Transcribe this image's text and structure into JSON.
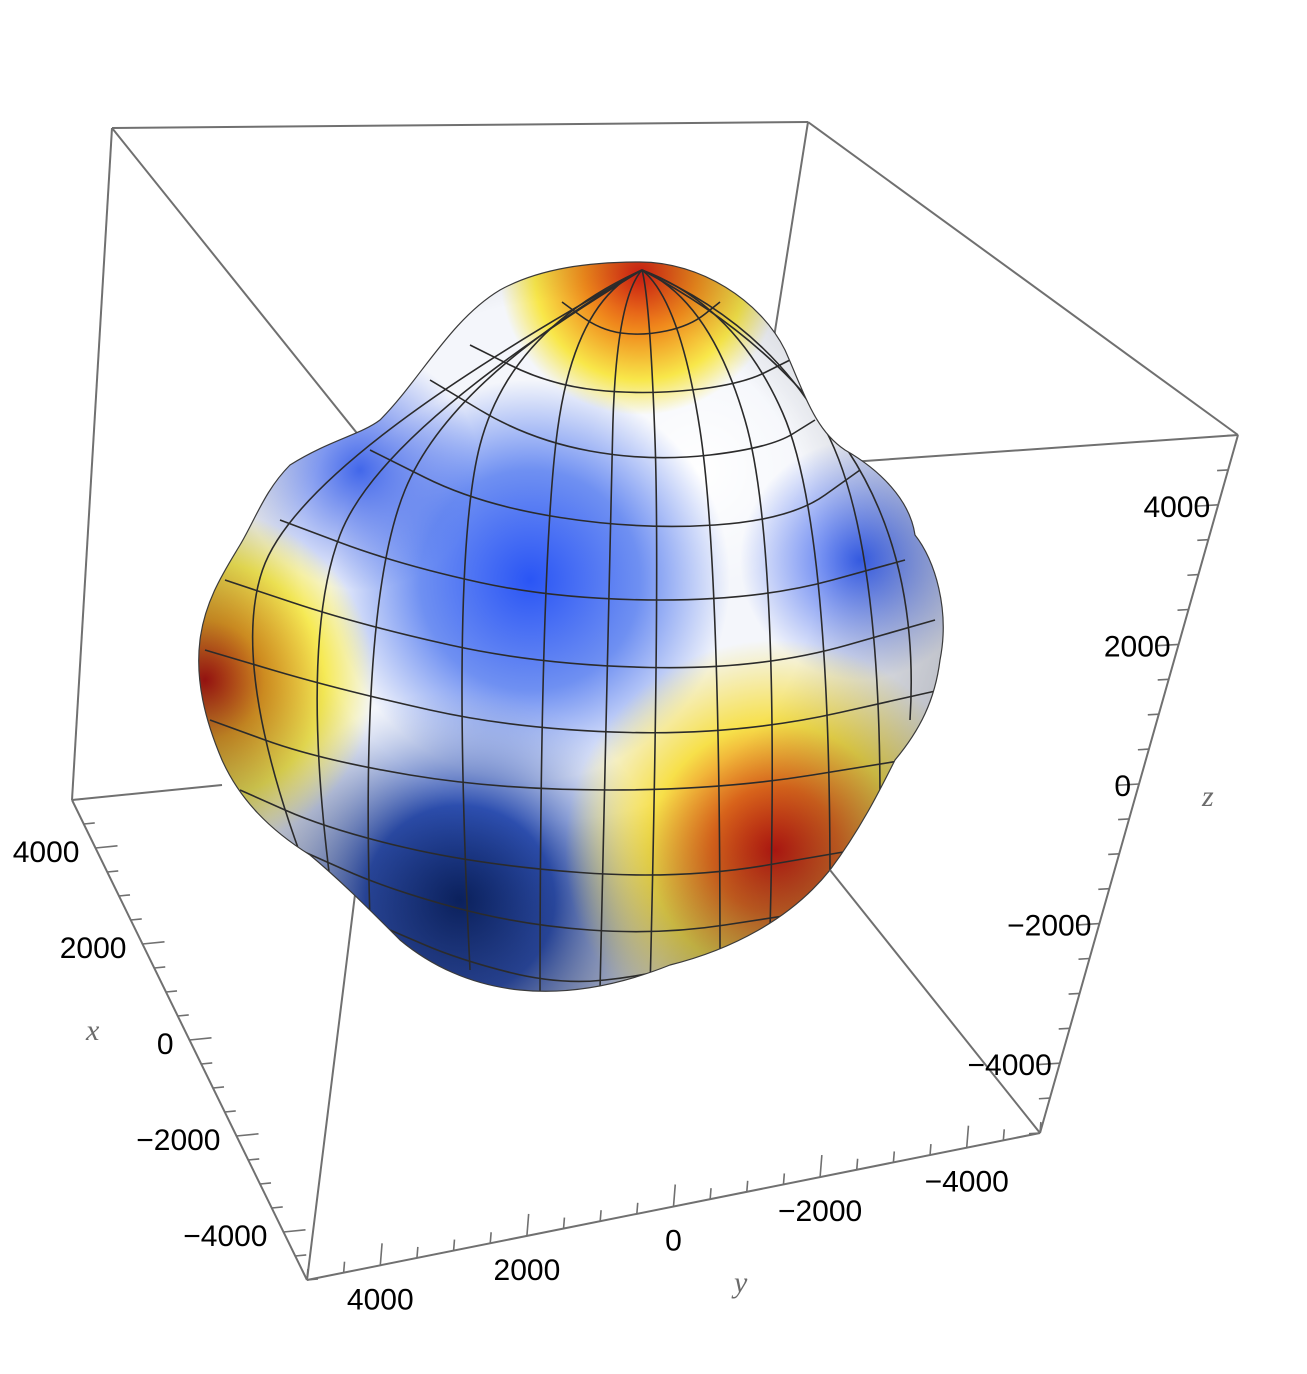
{
  "chart_data": {
    "type": "3d-surface",
    "title": "",
    "axes": {
      "x": {
        "label": "x",
        "range": [
          -5000,
          5000
        ],
        "ticks": [
          4000,
          2000,
          0,
          -2000,
          -4000
        ],
        "tick_labels": [
          "4000",
          "2000",
          "0",
          "−2000",
          "−4000"
        ]
      },
      "y": {
        "label": "y",
        "range": [
          -5000,
          5000
        ],
        "ticks": [
          4000,
          2000,
          0,
          -2000,
          -4000
        ],
        "tick_labels": [
          "4000",
          "2000",
          "0",
          "−2000",
          "−4000"
        ]
      },
      "z": {
        "label": "z",
        "range": [
          -5000,
          5000
        ],
        "ticks": [
          4000,
          2000,
          0,
          -2000,
          -4000
        ],
        "tick_labels": [
          "4000",
          "2000",
          "0",
          "−2000",
          "−4000"
        ]
      }
    },
    "box": true,
    "surface": "deformed sphere with mesh lines, red-yellow-white-blue color gradient",
    "colors": {
      "high": "#cc1a10",
      "mid_high": "#f5e23c",
      "neutral": "#ffffff",
      "low": "#2a5cf5",
      "deep_low": "#0b2a7a"
    }
  }
}
